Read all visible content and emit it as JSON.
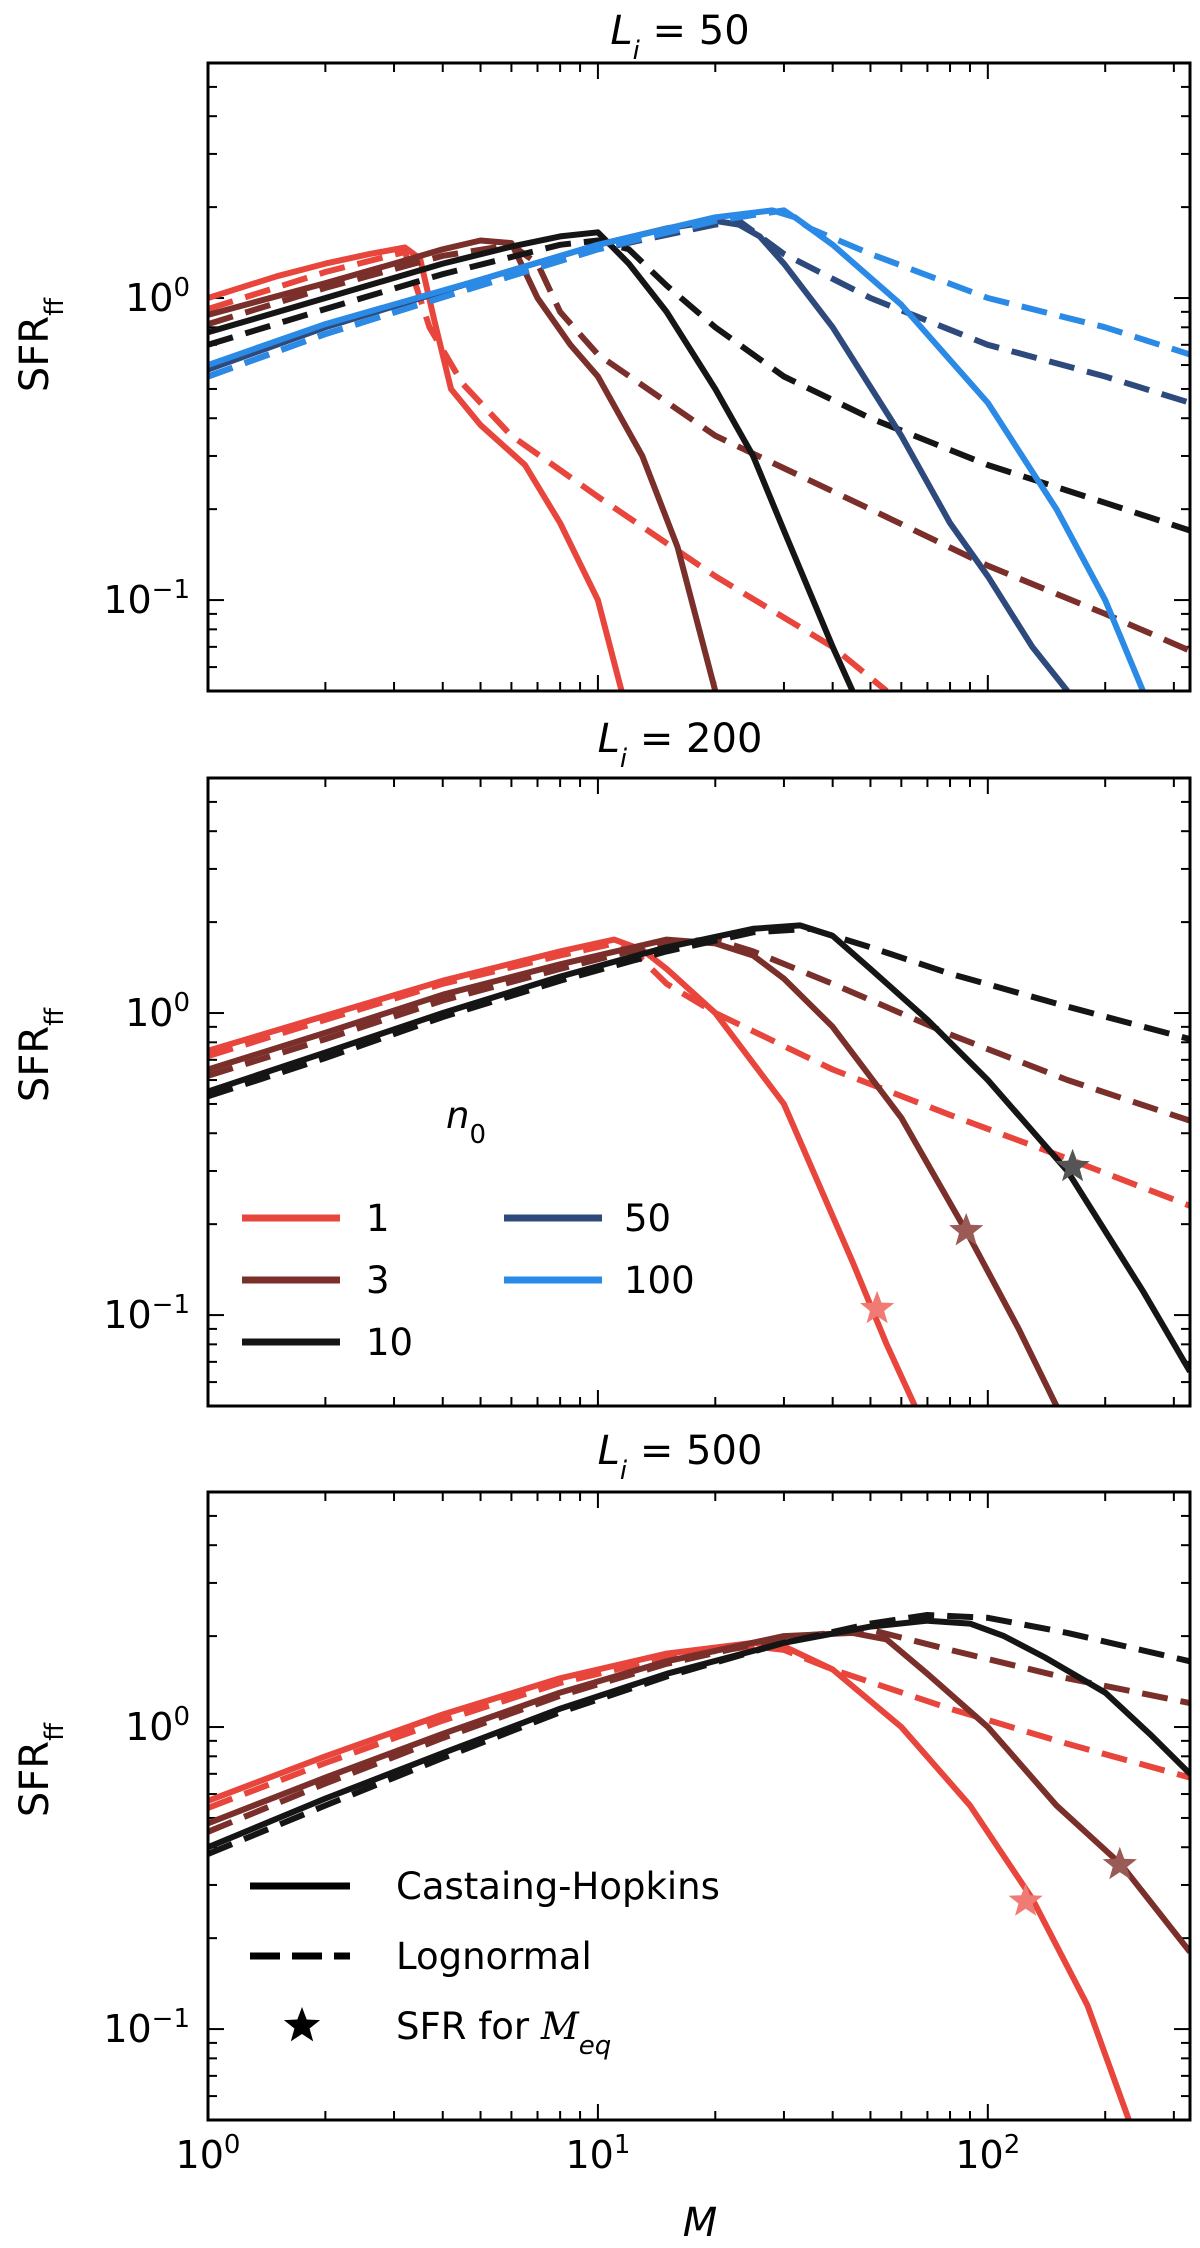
{
  "chart_data": [
    {
      "type": "line",
      "title": "L_i = 50",
      "title_var": "L",
      "title_sub": "i",
      "title_rest": " = 50",
      "xlabel": "M",
      "ylabel": "SFR",
      "ylabel_sub": "ff",
      "xscale": "log",
      "yscale": "log",
      "xlim": [
        1,
        330
      ],
      "ylim": [
        0.05,
        6
      ],
      "series": [
        {
          "name": "n0=1 Castaing-Hopkins",
          "style": "solid",
          "color": "#e8453c",
          "x": [
            1,
            1.5,
            2,
            2.6,
            3.2,
            3.5,
            3.8,
            4.2,
            5,
            6.5,
            8,
            10,
            11.5
          ],
          "y": [
            1.0,
            1.18,
            1.3,
            1.4,
            1.47,
            1.35,
            0.85,
            0.5,
            0.38,
            0.28,
            0.18,
            0.1,
            0.05
          ]
        },
        {
          "name": "n0=1 Lognormal",
          "style": "dashed",
          "color": "#e8453c",
          "x": [
            1,
            2,
            3.2,
            3.7,
            4.5,
            6,
            10,
            20,
            40,
            55
          ],
          "y": [
            0.92,
            1.22,
            1.42,
            0.8,
            0.52,
            0.35,
            0.22,
            0.12,
            0.07,
            0.05
          ]
        },
        {
          "name": "n0=3 Castaing-Hopkins",
          "style": "solid",
          "color": "#7a2f2a",
          "x": [
            1,
            2,
            3,
            4,
            5,
            6,
            7,
            8.5,
            10,
            13,
            16,
            20
          ],
          "y": [
            0.88,
            1.12,
            1.3,
            1.45,
            1.55,
            1.52,
            1.0,
            0.7,
            0.55,
            0.3,
            0.15,
            0.05
          ]
        },
        {
          "name": "n0=3 Lognormal",
          "style": "dashed",
          "color": "#7a2f2a",
          "x": [
            1,
            2,
            4,
            6,
            7,
            8,
            10,
            20,
            50,
            100,
            200,
            330
          ],
          "y": [
            0.82,
            1.08,
            1.38,
            1.5,
            1.3,
            0.9,
            0.65,
            0.35,
            0.2,
            0.13,
            0.09,
            0.068
          ]
        },
        {
          "name": "n0=10 Castaing-Hopkins",
          "style": "solid",
          "color": "#151515",
          "x": [
            1,
            2,
            4,
            6,
            8,
            10,
            12,
            15,
            20,
            25,
            30,
            40,
            45
          ],
          "y": [
            0.77,
            1.0,
            1.3,
            1.48,
            1.6,
            1.65,
            1.3,
            0.9,
            0.5,
            0.3,
            0.17,
            0.07,
            0.05
          ]
        },
        {
          "name": "n0=10 Lognormal",
          "style": "dashed",
          "color": "#151515",
          "x": [
            1,
            2,
            4,
            8,
            10,
            12,
            15,
            20,
            30,
            50,
            100,
            200,
            330
          ],
          "y": [
            0.7,
            0.92,
            1.2,
            1.5,
            1.55,
            1.45,
            1.1,
            0.8,
            0.55,
            0.4,
            0.28,
            0.21,
            0.17
          ]
        },
        {
          "name": "n0=50 Castaing-Hopkins",
          "style": "solid",
          "color": "#2e4a7d",
          "x": [
            1,
            2,
            5,
            10,
            15,
            20,
            23,
            26,
            30,
            40,
            60,
            80,
            100,
            130,
            160
          ],
          "y": [
            0.58,
            0.8,
            1.15,
            1.5,
            1.7,
            1.8,
            1.75,
            1.6,
            1.3,
            0.8,
            0.35,
            0.18,
            0.12,
            0.07,
            0.05
          ]
        },
        {
          "name": "n0=50 Lognormal",
          "style": "dashed",
          "color": "#2e4a7d",
          "x": [
            1,
            2,
            5,
            10,
            20,
            23,
            30,
            50,
            100,
            200,
            330
          ],
          "y": [
            0.55,
            0.76,
            1.1,
            1.45,
            1.75,
            1.8,
            1.4,
            1.0,
            0.7,
            0.55,
            0.45
          ]
        },
        {
          "name": "n0=100 Castaing-Hopkins",
          "style": "solid",
          "color": "#2a8ae6",
          "x": [
            1,
            2,
            5,
            10,
            20,
            28,
            32,
            40,
            60,
            100,
            150,
            200,
            250
          ],
          "y": [
            0.6,
            0.82,
            1.15,
            1.5,
            1.85,
            1.95,
            1.85,
            1.5,
            0.95,
            0.45,
            0.2,
            0.1,
            0.05
          ]
        },
        {
          "name": "n0=100 Lognormal",
          "style": "dashed",
          "color": "#2a8ae6",
          "x": [
            1,
            2,
            5,
            10,
            20,
            30,
            35,
            50,
            100,
            200,
            330
          ],
          "y": [
            0.55,
            0.76,
            1.1,
            1.45,
            1.8,
            1.95,
            1.7,
            1.4,
            1.0,
            0.8,
            0.65
          ]
        }
      ],
      "stars": []
    },
    {
      "type": "line",
      "title": "L_i = 200",
      "title_var": "L",
      "title_sub": "i",
      "title_rest": " = 200",
      "xlabel": "M",
      "ylabel": "SFR",
      "ylabel_sub": "ff",
      "xscale": "log",
      "yscale": "log",
      "xlim": [
        1,
        330
      ],
      "ylim": [
        0.05,
        6
      ],
      "series": [
        {
          "name": "n0=1 Castaing-Hopkins",
          "style": "solid",
          "color": "#e8453c",
          "x": [
            1,
            2,
            4,
            8,
            11,
            13,
            15,
            20,
            30,
            45,
            55,
            65
          ],
          "y": [
            0.75,
            0.98,
            1.28,
            1.6,
            1.75,
            1.62,
            1.4,
            1.0,
            0.5,
            0.15,
            0.08,
            0.05
          ]
        },
        {
          "name": "n0=1 Lognormal",
          "style": "dashed",
          "color": "#e8453c",
          "x": [
            1,
            2,
            4,
            8,
            11,
            13,
            15,
            20,
            40,
            80,
            160,
            330
          ],
          "y": [
            0.72,
            0.95,
            1.25,
            1.55,
            1.7,
            1.5,
            1.25,
            1.0,
            0.65,
            0.46,
            0.33,
            0.23
          ]
        },
        {
          "name": "n0=3 Castaing-Hopkins",
          "style": "solid",
          "color": "#7a2f2a",
          "x": [
            1,
            2,
            4,
            8,
            15,
            20,
            25,
            30,
            40,
            60,
            90,
            120,
            150
          ],
          "y": [
            0.65,
            0.86,
            1.15,
            1.45,
            1.75,
            1.7,
            1.55,
            1.3,
            0.9,
            0.45,
            0.18,
            0.09,
            0.05
          ]
        },
        {
          "name": "n0=3 Lognormal",
          "style": "dashed",
          "color": "#7a2f2a",
          "x": [
            1,
            2,
            4,
            8,
            15,
            20,
            25,
            40,
            80,
            160,
            330
          ],
          "y": [
            0.62,
            0.82,
            1.1,
            1.4,
            1.72,
            1.75,
            1.6,
            1.25,
            0.85,
            0.6,
            0.44
          ]
        },
        {
          "name": "n0=10 Castaing-Hopkins",
          "style": "solid",
          "color": "#151515",
          "x": [
            1,
            2,
            4,
            8,
            15,
            25,
            33,
            40,
            50,
            70,
            100,
            160,
            250,
            330
          ],
          "y": [
            0.55,
            0.74,
            1.0,
            1.32,
            1.65,
            1.9,
            1.95,
            1.8,
            1.4,
            0.95,
            0.6,
            0.3,
            0.12,
            0.065
          ]
        },
        {
          "name": "n0=10 Lognormal",
          "style": "dashed",
          "color": "#151515",
          "x": [
            1,
            2,
            4,
            8,
            15,
            25,
            35,
            50,
            80,
            160,
            330
          ],
          "y": [
            0.53,
            0.71,
            0.97,
            1.28,
            1.6,
            1.85,
            1.9,
            1.65,
            1.35,
            1.05,
            0.82
          ]
        }
      ],
      "stars": [
        {
          "x": 52,
          "y": 0.105,
          "color": "#f07a74"
        },
        {
          "x": 88,
          "y": 0.19,
          "color": "#9a5a55"
        },
        {
          "x": 165,
          "y": 0.31,
          "color": "#555555"
        }
      ],
      "legend": {
        "title": "n0",
        "entries": [
          {
            "label": "1",
            "color": "#e8453c"
          },
          {
            "label": "3",
            "color": "#7a2f2a"
          },
          {
            "label": "10",
            "color": "#151515"
          },
          {
            "label": "50",
            "color": "#2e4a7d"
          },
          {
            "label": "100",
            "color": "#2a8ae6"
          }
        ]
      }
    },
    {
      "type": "line",
      "title": "L_i = 500",
      "title_var": "L",
      "title_sub": "i",
      "title_rest": " = 500",
      "xlabel": "M",
      "ylabel": "SFR",
      "ylabel_sub": "ff",
      "xscale": "log",
      "yscale": "log",
      "xlim": [
        1,
        330
      ],
      "ylim": [
        0.05,
        6
      ],
      "series": [
        {
          "name": "n0=1 Castaing-Hopkins",
          "style": "solid",
          "color": "#e8453c",
          "x": [
            1,
            2,
            4,
            8,
            15,
            25,
            30,
            40,
            60,
            90,
            130,
            180,
            230
          ],
          "y": [
            0.57,
            0.8,
            1.1,
            1.45,
            1.75,
            1.9,
            1.85,
            1.55,
            1.0,
            0.55,
            0.27,
            0.12,
            0.05
          ]
        },
        {
          "name": "n0=1 Lognormal",
          "style": "dashed",
          "color": "#e8453c",
          "x": [
            1,
            2,
            4,
            8,
            15,
            25,
            30,
            40,
            80,
            160,
            330
          ],
          "y": [
            0.54,
            0.76,
            1.05,
            1.4,
            1.7,
            1.85,
            1.8,
            1.55,
            1.15,
            0.88,
            0.68
          ]
        },
        {
          "name": "n0=3 Castaing-Hopkins",
          "style": "solid",
          "color": "#7a2f2a",
          "x": [
            1,
            2,
            4,
            8,
            15,
            30,
            45,
            55,
            70,
            100,
            150,
            220,
            330
          ],
          "y": [
            0.48,
            0.68,
            0.95,
            1.3,
            1.65,
            2.0,
            2.05,
            1.95,
            1.5,
            1.0,
            0.55,
            0.35,
            0.18
          ]
        },
        {
          "name": "n0=3 Lognormal",
          "style": "dashed",
          "color": "#7a2f2a",
          "x": [
            1,
            2,
            4,
            8,
            15,
            30,
            50,
            80,
            160,
            330
          ],
          "y": [
            0.45,
            0.65,
            0.92,
            1.27,
            1.62,
            1.98,
            2.1,
            1.8,
            1.45,
            1.2
          ]
        },
        {
          "name": "n0=10 Castaing-Hopkins",
          "style": "solid",
          "color": "#151515",
          "x": [
            1,
            2,
            4,
            8,
            15,
            30,
            50,
            70,
            90,
            110,
            140,
            200,
            260,
            330
          ],
          "y": [
            0.4,
            0.58,
            0.82,
            1.15,
            1.5,
            1.9,
            2.15,
            2.25,
            2.2,
            2.0,
            1.7,
            1.3,
            0.95,
            0.7
          ]
        },
        {
          "name": "n0=10 Lognormal",
          "style": "dashed",
          "color": "#151515",
          "x": [
            1,
            2,
            4,
            8,
            15,
            30,
            50,
            70,
            100,
            160,
            330
          ],
          "y": [
            0.38,
            0.55,
            0.79,
            1.12,
            1.47,
            1.9,
            2.2,
            2.35,
            2.3,
            2.05,
            1.65
          ]
        }
      ],
      "stars": [
        {
          "x": 125,
          "y": 0.265,
          "color": "#f07a74"
        },
        {
          "x": 218,
          "y": 0.35,
          "color": "#9a5a55"
        }
      ],
      "legend": {
        "entries": [
          {
            "label": "Castaing-Hopkins",
            "style": "solid"
          },
          {
            "label": "Lognormal",
            "style": "dashed"
          },
          {
            "label": "SFR for ",
            "style": "star",
            "math": "M",
            "math_sub": "eq"
          }
        ]
      }
    }
  ]
}
